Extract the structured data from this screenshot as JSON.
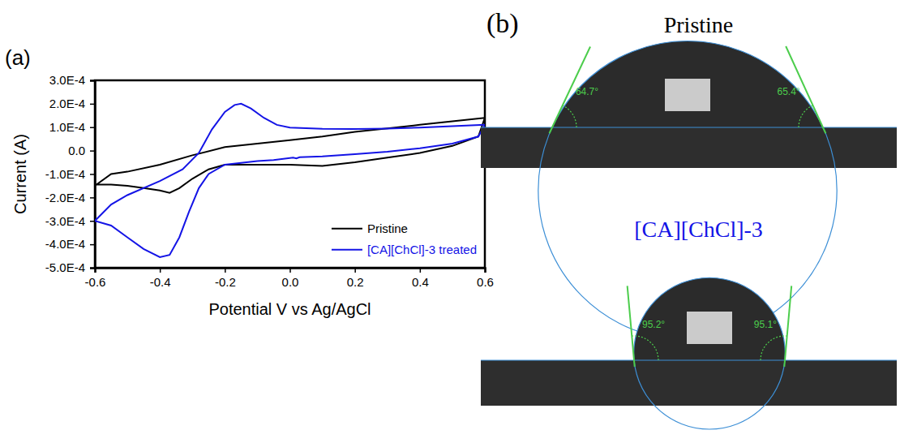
{
  "chart_data": {
    "type": "line",
    "annotations": [
      "(a)"
    ],
    "x_label": "Potential V vs Ag/AgCl",
    "y_label": "Current (A)",
    "xlim": [
      -0.6,
      0.6
    ],
    "ylim": [
      -0.0005,
      0.0003
    ],
    "xticks": [
      -0.6,
      -0.4,
      -0.2,
      {
        "value": 0,
        "label": "0.0"
      },
      0.2,
      0.4,
      0.6
    ],
    "yticks": [
      {
        "value": -0.0005,
        "label": "-5.0E-4"
      },
      {
        "value": -0.0004,
        "label": "-4.0E-4"
      },
      {
        "value": -0.0003,
        "label": "-3.0E-4"
      },
      {
        "value": -0.0002,
        "label": "-2.0E-4"
      },
      {
        "value": -0.0001,
        "label": "-1.0E-4"
      },
      {
        "value": 0,
        "label": "0.0"
      },
      {
        "value": 0.0001,
        "label": "1.0E-4"
      },
      {
        "value": 0.0002,
        "label": "2.0E-4"
      },
      {
        "value": 0.0003,
        "label": "3.0E-4"
      }
    ],
    "legend": "lower right",
    "series": [
      {
        "name": "Pristine",
        "color": "#000000",
        "x": [
          -0.6,
          -0.55,
          -0.5,
          -0.4,
          -0.3,
          -0.2,
          -0.1,
          0.0,
          0.1,
          0.2,
          0.3,
          0.4,
          0.5,
          0.6,
          0.58,
          0.5,
          0.4,
          0.3,
          0.2,
          0.1,
          0.0,
          -0.1,
          -0.2,
          -0.25,
          -0.3,
          -0.34,
          -0.37,
          -0.4,
          -0.45,
          -0.5,
          -0.55,
          -0.6
        ],
        "values": [
          -0.00015,
          -0.0001,
          -9e-05,
          -6e-05,
          -2e-05,
          1.5e-05,
          3e-05,
          4.5e-05,
          6e-05,
          8e-05,
          9.5e-05,
          0.00011,
          0.000125,
          0.00014,
          6e-05,
          2e-05,
          -1e-05,
          -3e-05,
          -5e-05,
          -6.5e-05,
          -6e-05,
          -6e-05,
          -6e-05,
          -8e-05,
          -0.00012,
          -0.00016,
          -0.00018,
          -0.00017,
          -0.00016,
          -0.00015,
          -0.000145,
          -0.000145
        ]
      },
      {
        "name": "[CA][ChCl]-3 treated",
        "color": "#1414e6",
        "x": [
          -0.6,
          -0.55,
          -0.5,
          -0.4,
          -0.33,
          -0.28,
          -0.24,
          -0.2,
          -0.17,
          -0.15,
          -0.12,
          -0.08,
          -0.04,
          0.0,
          0.1,
          0.2,
          0.3,
          0.4,
          0.5,
          0.6,
          0.58,
          0.5,
          0.4,
          0.3,
          0.2,
          0.1,
          0.03,
          0.02,
          0.01,
          -0.05,
          -0.1,
          -0.2,
          -0.25,
          -0.28,
          -0.31,
          -0.34,
          -0.37,
          -0.4,
          -0.45,
          -0.5,
          -0.55,
          -0.6
        ],
        "values": [
          -0.0003,
          -0.00023,
          -0.00019,
          -0.00013,
          -8e-05,
          -1e-05,
          9e-05,
          0.000165,
          0.000195,
          0.0002,
          0.00018,
          0.00014,
          0.00011,
          9.8e-05,
          9.3e-05,
          9.2e-05,
          9.4e-05,
          9.8e-05,
          0.000104,
          0.00011,
          6e-05,
          3e-05,
          1e-05,
          -5e-06,
          -1.5e-05,
          -2.5e-05,
          -2.8e-05,
          -3.3e-05,
          -3e-05,
          -4e-05,
          -4.5e-05,
          -6e-05,
          -0.0001,
          -0.00016,
          -0.00026,
          -0.00037,
          -0.000445,
          -0.000455,
          -0.00042,
          -0.00037,
          -0.00032,
          -0.0003
        ]
      }
    ]
  },
  "contact_angle": {
    "label": "(b)",
    "samples": [
      {
        "title": "Pristine",
        "color": "#000000",
        "left_angle": 64.7,
        "left_label": "64.7°",
        "right_angle": 65.4,
        "right_label": "65.4°"
      },
      {
        "title": "[CA][ChCl]-3",
        "color": "#1414e6",
        "left_angle": 95.2,
        "left_label": "95.2°",
        "right_angle": 95.1,
        "right_label": "95.1°"
      }
    ]
  }
}
